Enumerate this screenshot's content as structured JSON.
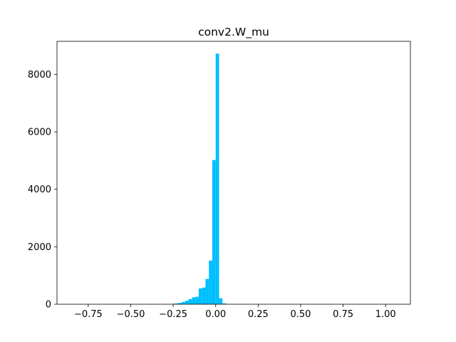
{
  "chart_data": {
    "type": "bar",
    "title": "conv2.W_mu",
    "xlabel": "",
    "ylabel": "",
    "xlim": [
      -0.934,
      1.146
    ],
    "ylim": [
      0,
      9150
    ],
    "bin_width": 0.02,
    "bar_color": "#00bfff",
    "grid": false,
    "x_ticks": [
      {
        "value": -0.75,
        "label": "−0.75"
      },
      {
        "value": -0.5,
        "label": "−0.50"
      },
      {
        "value": -0.25,
        "label": "−0.25"
      },
      {
        "value": 0.0,
        "label": "0.00"
      },
      {
        "value": 0.25,
        "label": "0.25"
      },
      {
        "value": 0.5,
        "label": "0.50"
      },
      {
        "value": 0.75,
        "label": "0.75"
      },
      {
        "value": 1.0,
        "label": "1.00"
      }
    ],
    "y_ticks": [
      {
        "value": 0,
        "label": "0"
      },
      {
        "value": 2000,
        "label": "2000"
      },
      {
        "value": 4000,
        "label": "4000"
      },
      {
        "value": 6000,
        "label": "6000"
      },
      {
        "value": 8000,
        "label": "8000"
      }
    ],
    "bins": [
      {
        "x": -0.26,
        "count": 15
      },
      {
        "x": -0.24,
        "count": 30
      },
      {
        "x": -0.22,
        "count": 45
      },
      {
        "x": -0.2,
        "count": 80
      },
      {
        "x": -0.18,
        "count": 120
      },
      {
        "x": -0.16,
        "count": 180
      },
      {
        "x": -0.14,
        "count": 240
      },
      {
        "x": -0.12,
        "count": 260
      },
      {
        "x": -0.1,
        "count": 550
      },
      {
        "x": -0.08,
        "count": 580
      },
      {
        "x": -0.06,
        "count": 880
      },
      {
        "x": -0.04,
        "count": 1520
      },
      {
        "x": -0.02,
        "count": 5020
      },
      {
        "x": 0.0,
        "count": 8720
      },
      {
        "x": 0.02,
        "count": 210
      },
      {
        "x": 0.04,
        "count": 30
      },
      {
        "x": 0.06,
        "count": 5
      }
    ]
  }
}
